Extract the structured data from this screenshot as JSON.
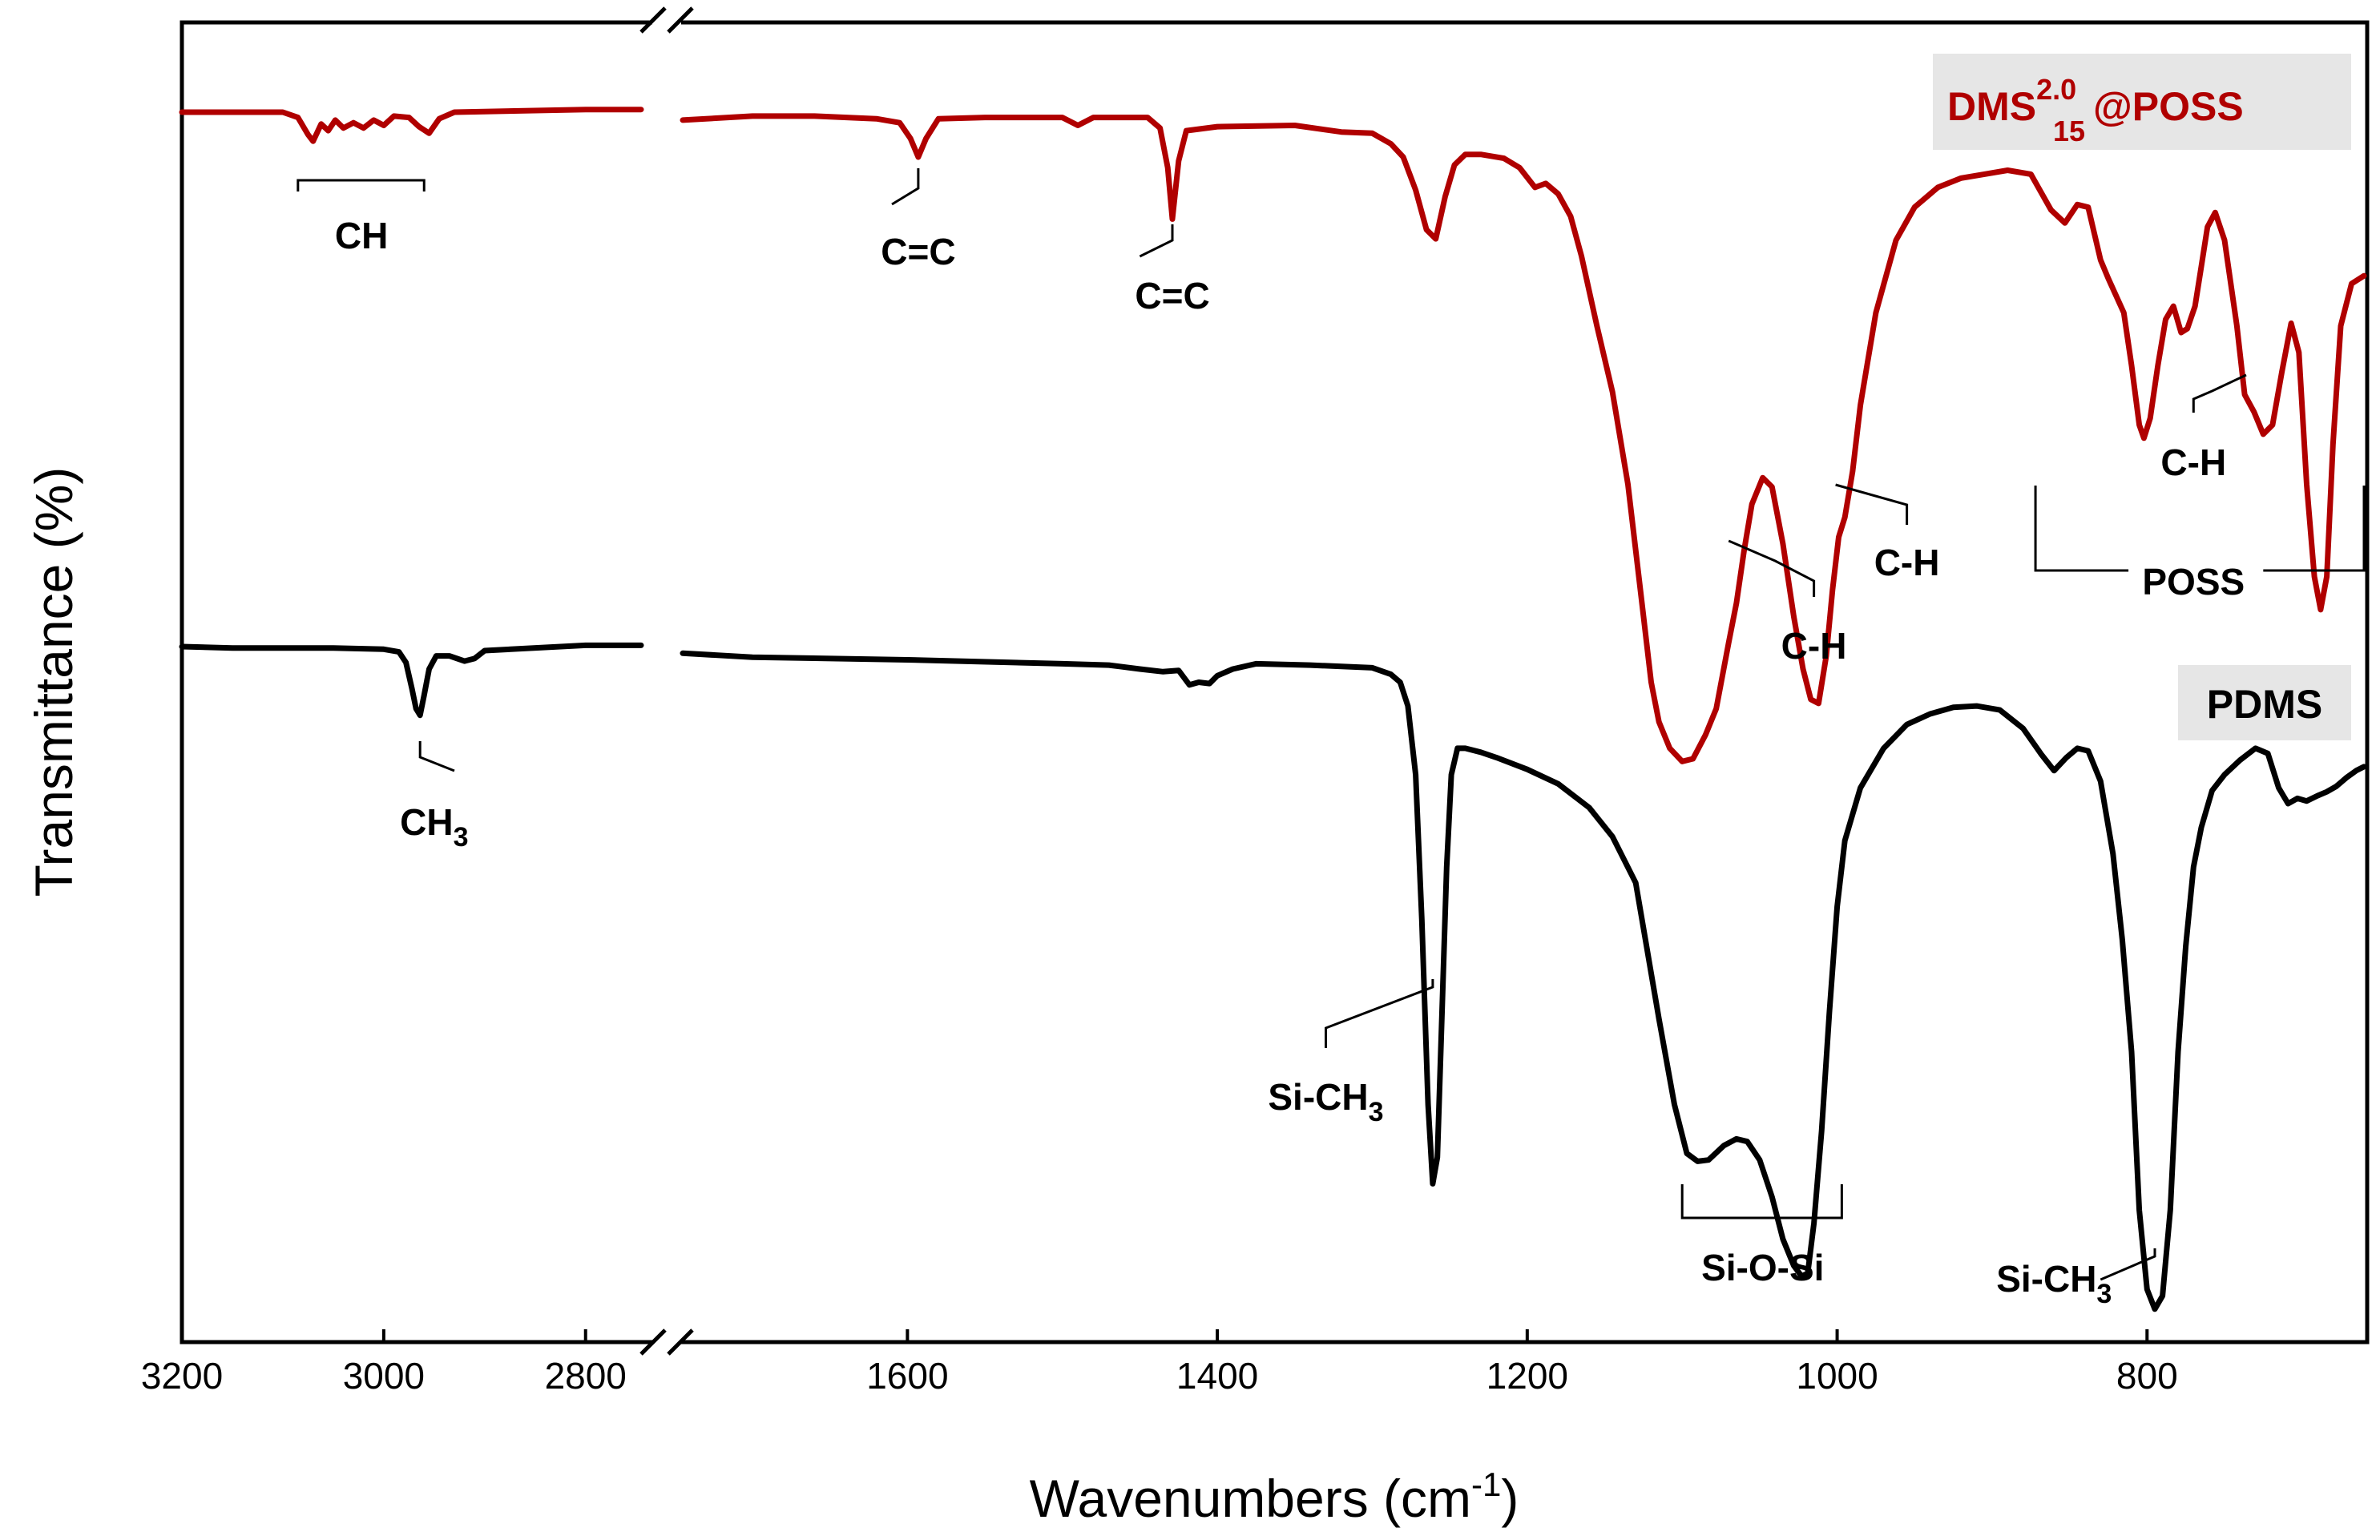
{
  "chart_data": {
    "type": "line",
    "title": "",
    "xlabel": "Wavenumbers (cm",
    "xlabel_sup": "-1",
    "xlabel_end": ")",
    "ylabel": "Transmittance (%)",
    "x_axis_reversed": true,
    "x_axis_broken": true,
    "xlim_left": [
      3200,
      2745
    ],
    "xlim_right": [
      1745,
      660
    ],
    "xticks": [
      {
        "value": 3200,
        "label": "3200",
        "segment": "left"
      },
      {
        "value": 3000,
        "label": "3000",
        "segment": "left"
      },
      {
        "value": 2800,
        "label": "2800",
        "segment": "left"
      },
      {
        "value": 1600,
        "label": "1600",
        "segment": "right"
      },
      {
        "value": 1400,
        "label": "1400",
        "segment": "right"
      },
      {
        "value": 1200,
        "label": "1200",
        "segment": "right"
      },
      {
        "value": 1000,
        "label": "1000",
        "segment": "right"
      },
      {
        "value": 800,
        "label": "800",
        "segment": "right"
      }
    ],
    "ylim": [
      0,
      100
    ],
    "y_ticks_shown": false,
    "series": [
      {
        "name": "DMS@POSS",
        "legend_base": "DMS",
        "legend_sup": "2.0",
        "legend_sub": "15",
        "legend_tail": "@POSS",
        "color": "#b00000",
        "points": [
          [
            3200,
            93.2
          ],
          [
            3150,
            93.2
          ],
          [
            3100,
            93.2
          ],
          [
            3085,
            92.8
          ],
          [
            3075,
            91.5
          ],
          [
            3070,
            91.0
          ],
          [
            3062,
            92.3
          ],
          [
            3055,
            91.8
          ],
          [
            3048,
            92.6
          ],
          [
            3040,
            92.0
          ],
          [
            3030,
            92.4
          ],
          [
            3020,
            92.0
          ],
          [
            3010,
            92.6
          ],
          [
            3000,
            92.2
          ],
          [
            2990,
            92.9
          ],
          [
            2975,
            92.8
          ],
          [
            2965,
            92.1
          ],
          [
            2955,
            91.6
          ],
          [
            2945,
            92.7
          ],
          [
            2930,
            93.2
          ],
          [
            2800,
            93.4
          ],
          [
            2745,
            93.4
          ],
          [
            1745,
            92.6
          ],
          [
            1700,
            92.9
          ],
          [
            1660,
            92.9
          ],
          [
            1620,
            92.7
          ],
          [
            1605,
            92.4
          ],
          [
            1598,
            91.2
          ],
          [
            1593,
            89.8
          ],
          [
            1588,
            91.2
          ],
          [
            1580,
            92.7
          ],
          [
            1550,
            92.8
          ],
          [
            1500,
            92.8
          ],
          [
            1490,
            92.2
          ],
          [
            1480,
            92.8
          ],
          [
            1445,
            92.8
          ],
          [
            1437,
            92.0
          ],
          [
            1432,
            89.0
          ],
          [
            1429,
            85.1
          ],
          [
            1425,
            89.5
          ],
          [
            1420,
            91.8
          ],
          [
            1400,
            92.1
          ],
          [
            1350,
            92.2
          ],
          [
            1320,
            91.7
          ],
          [
            1300,
            91.6
          ],
          [
            1288,
            90.8
          ],
          [
            1280,
            89.8
          ],
          [
            1272,
            87.3
          ],
          [
            1265,
            84.3
          ],
          [
            1259,
            83.6
          ],
          [
            1253,
            86.8
          ],
          [
            1247,
            89.2
          ],
          [
            1240,
            90.0
          ],
          [
            1230,
            90.0
          ],
          [
            1215,
            89.7
          ],
          [
            1205,
            89.0
          ],
          [
            1195,
            87.5
          ],
          [
            1188,
            87.8
          ],
          [
            1180,
            87.0
          ],
          [
            1172,
            85.3
          ],
          [
            1165,
            82.3
          ],
          [
            1155,
            77.0
          ],
          [
            1145,
            72.0
          ],
          [
            1135,
            65.0
          ],
          [
            1125,
            55.0
          ],
          [
            1120,
            50.0
          ],
          [
            1115,
            47.0
          ],
          [
            1108,
            45.0
          ],
          [
            1100,
            44.0
          ],
          [
            1093,
            44.2
          ],
          [
            1085,
            46.0
          ],
          [
            1078,
            48.0
          ],
          [
            1070,
            53.0
          ],
          [
            1065,
            56.0
          ],
          [
            1060,
            60.0
          ],
          [
            1055,
            63.5
          ],
          [
            1048,
            65.5
          ],
          [
            1042,
            64.8
          ],
          [
            1035,
            60.5
          ],
          [
            1028,
            55.0
          ],
          [
            1022,
            51.0
          ],
          [
            1017,
            48.7
          ],
          [
            1012,
            48.4
          ],
          [
            1007,
            52.0
          ],
          [
            1003,
            57.0
          ],
          [
            999,
            61.0
          ],
          [
            995,
            62.5
          ],
          [
            990,
            66.0
          ],
          [
            985,
            71.0
          ],
          [
            975,
            78.0
          ],
          [
            962,
            83.5
          ],
          [
            950,
            86.0
          ],
          [
            935,
            87.5
          ],
          [
            920,
            88.2
          ],
          [
            905,
            88.5
          ],
          [
            890,
            88.8
          ],
          [
            875,
            88.5
          ],
          [
            862,
            85.8
          ],
          [
            853,
            84.8
          ],
          [
            845,
            86.2
          ],
          [
            838,
            86.0
          ],
          [
            830,
            82.0
          ],
          [
            825,
            80.6
          ],
          [
            815,
            78.0
          ],
          [
            810,
            74.0
          ],
          [
            805,
            69.5
          ],
          [
            802,
            68.5
          ],
          [
            798,
            70.0
          ],
          [
            793,
            74.0
          ],
          [
            788,
            77.5
          ],
          [
            783,
            78.5
          ],
          [
            778,
            76.5
          ],
          [
            774,
            76.8
          ],
          [
            769,
            78.5
          ],
          [
            765,
            81.5
          ],
          [
            761,
            84.5
          ],
          [
            756,
            85.6
          ],
          [
            750,
            83.5
          ],
          [
            742,
            77.0
          ],
          [
            737,
            71.8
          ],
          [
            731,
            70.5
          ],
          [
            725,
            68.8
          ],
          [
            719,
            69.5
          ],
          [
            713,
            73.5
          ],
          [
            707,
            77.2
          ],
          [
            702,
            75.0
          ],
          [
            697,
            65.0
          ],
          [
            692,
            58.0
          ],
          [
            688,
            55.5
          ],
          [
            684,
            58.0
          ],
          [
            680,
            68.0
          ],
          [
            675,
            77.0
          ],
          [
            668,
            80.2
          ],
          [
            660,
            80.8
          ]
        ],
        "annotations": [
          {
            "label": "CH",
            "x": 3022,
            "kind": "bracket"
          },
          {
            "label": "C=C",
            "x": 1593,
            "kind": "leader"
          },
          {
            "label": "C=C",
            "x": 1429,
            "kind": "leader"
          },
          {
            "label": "C-H",
            "x": 1070,
            "kind": "leader"
          },
          {
            "label": "C-H",
            "x": 1001,
            "kind": "leader"
          },
          {
            "label": "C-H",
            "x": 736,
            "kind": "leader"
          },
          {
            "label": "POSS",
            "x": 770,
            "kind": "bracket"
          }
        ]
      },
      {
        "name": "PDMS",
        "legend_base": "PDMS",
        "color": "#000000",
        "points": [
          [
            3200,
            52.7
          ],
          [
            3150,
            52.6
          ],
          [
            3100,
            52.6
          ],
          [
            3050,
            52.6
          ],
          [
            3000,
            52.5
          ],
          [
            2985,
            52.3
          ],
          [
            2978,
            51.5
          ],
          [
            2972,
            49.5
          ],
          [
            2968,
            48.0
          ],
          [
            2964,
            47.5
          ],
          [
            2960,
            49.0
          ],
          [
            2955,
            51.0
          ],
          [
            2948,
            52.0
          ],
          [
            2935,
            52.0
          ],
          [
            2920,
            51.6
          ],
          [
            2910,
            51.8
          ],
          [
            2900,
            52.4
          ],
          [
            2800,
            52.8
          ],
          [
            2745,
            52.8
          ],
          [
            1745,
            52.2
          ],
          [
            1700,
            51.9
          ],
          [
            1600,
            51.7
          ],
          [
            1500,
            51.4
          ],
          [
            1470,
            51.3
          ],
          [
            1450,
            51.0
          ],
          [
            1435,
            50.8
          ],
          [
            1425,
            50.9
          ],
          [
            1418,
            49.8
          ],
          [
            1412,
            50.0
          ],
          [
            1405,
            49.9
          ],
          [
            1400,
            50.5
          ],
          [
            1390,
            51.0
          ],
          [
            1375,
            51.4
          ],
          [
            1340,
            51.3
          ],
          [
            1300,
            51.1
          ],
          [
            1288,
            50.6
          ],
          [
            1282,
            50.0
          ],
          [
            1277,
            48.2
          ],
          [
            1272,
            43.0
          ],
          [
            1268,
            32.0
          ],
          [
            1264,
            18.0
          ],
          [
            1261,
            12.0
          ],
          [
            1258,
            14.0
          ],
          [
            1255,
            25.0
          ],
          [
            1252,
            36.0
          ],
          [
            1249,
            43.0
          ],
          [
            1245,
            45.0
          ],
          [
            1240,
            45.0
          ],
          [
            1230,
            44.7
          ],
          [
            1220,
            44.3
          ],
          [
            1200,
            43.4
          ],
          [
            1180,
            42.3
          ],
          [
            1160,
            40.5
          ],
          [
            1145,
            38.3
          ],
          [
            1130,
            34.8
          ],
          [
            1115,
            24.5
          ],
          [
            1105,
            18.0
          ],
          [
            1097,
            14.3
          ],
          [
            1090,
            13.7
          ],
          [
            1083,
            13.8
          ],
          [
            1073,
            14.9
          ],
          [
            1065,
            15.4
          ],
          [
            1058,
            15.2
          ],
          [
            1050,
            13.8
          ],
          [
            1042,
            11.0
          ],
          [
            1035,
            7.8
          ],
          [
            1028,
            5.8
          ],
          [
            1023,
            5.0
          ],
          [
            1019,
            5.2
          ],
          [
            1015,
            9.0
          ],
          [
            1010,
            16.0
          ],
          [
            1005,
            25.0
          ],
          [
            1000,
            33.0
          ],
          [
            995,
            38.0
          ],
          [
            985,
            42.0
          ],
          [
            970,
            45.0
          ],
          [
            955,
            46.8
          ],
          [
            940,
            47.6
          ],
          [
            925,
            48.1
          ],
          [
            910,
            48.2
          ],
          [
            895,
            47.9
          ],
          [
            880,
            46.5
          ],
          [
            868,
            44.5
          ],
          [
            860,
            43.3
          ],
          [
            852,
            44.3
          ],
          [
            845,
            45.0
          ],
          [
            838,
            44.8
          ],
          [
            830,
            42.5
          ],
          [
            822,
            37.0
          ],
          [
            816,
            30.5
          ],
          [
            810,
            22.0
          ],
          [
            805,
            10.0
          ],
          [
            800,
            4.0
          ],
          [
            795,
            2.5
          ],
          [
            790,
            3.5
          ],
          [
            785,
            10.0
          ],
          [
            780,
            22.0
          ],
          [
            775,
            30.0
          ],
          [
            770,
            36.0
          ],
          [
            765,
            39.0
          ],
          [
            758,
            41.8
          ],
          [
            750,
            43.0
          ],
          [
            740,
            44.1
          ],
          [
            730,
            45.0
          ],
          [
            722,
            44.6
          ],
          [
            715,
            42.0
          ],
          [
            709,
            40.8
          ],
          [
            703,
            41.2
          ],
          [
            697,
            41.0
          ],
          [
            690,
            41.4
          ],
          [
            684,
            41.7
          ],
          [
            678,
            42.1
          ],
          [
            671,
            42.8
          ],
          [
            665,
            43.3
          ],
          [
            660,
            43.6
          ]
        ],
        "annotations": [
          {
            "label": "CH",
            "sub": "3",
            "x": 2964,
            "kind": "leader"
          },
          {
            "label": "Si-CH",
            "sub": "3",
            "x": 1261,
            "kind": "leader"
          },
          {
            "label": "Si-O-Si",
            "x": 1060,
            "kind": "bracket"
          },
          {
            "label": "Si-CH",
            "sub": "3",
            "x": 795,
            "kind": "leader"
          }
        ]
      }
    ]
  }
}
